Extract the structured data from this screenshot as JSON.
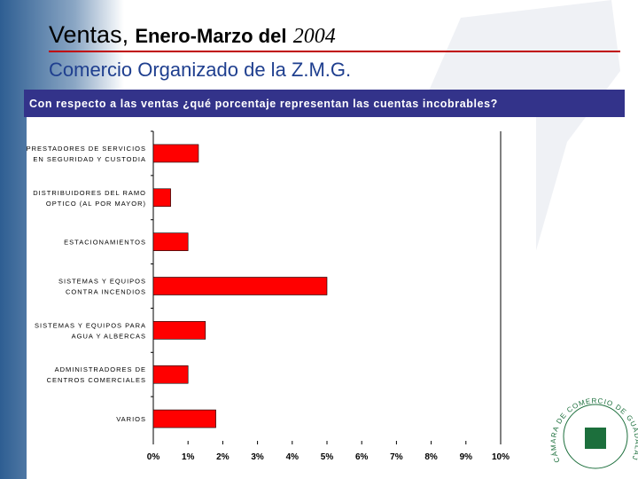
{
  "header": {
    "title": [
      "Ventas,",
      "Enero-Marzo del",
      "2004"
    ],
    "subtitle": "Comercio Organizado de la Z.M.G.",
    "question": "Con respecto a las ventas ¿qué porcentaje representan las cuentas incobrables?",
    "logo_text": "CÁMARA DE COMERCIO DE GUADALAJARA"
  },
  "chart_data": {
    "type": "hbar",
    "categories": [
      [
        "PRESTADORES DE SERVICIOS",
        "EN SEGURIDAD Y CUSTODIA"
      ],
      [
        "DISTRIBUIDORES DEL RAMO",
        "OPTICO (AL POR MAYOR)"
      ],
      [
        "ESTACIONAMIENTOS"
      ],
      [
        "SISTEMAS Y EQUIPOS",
        "CONTRA INCENDIOS"
      ],
      [
        "SISTEMAS Y EQUIPOS PARA",
        "AGUA Y ALBERCAS"
      ],
      [
        "ADMINISTRADORES DE",
        "CENTROS COMERCIALES"
      ],
      [
        "VARIOS"
      ]
    ],
    "values": [
      1.3,
      0.5,
      1.0,
      5.0,
      1.5,
      1.0,
      1.8
    ],
    "color": "#ff0000",
    "xlim": [
      0,
      10
    ],
    "xticks": [
      {
        "value": 0,
        "label": "0%"
      },
      {
        "value": 1,
        "label": "1%"
      },
      {
        "value": 2,
        "label": "2%"
      },
      {
        "value": 3,
        "label": "3%"
      },
      {
        "value": 4,
        "label": "4%"
      },
      {
        "value": 5,
        "label": "5%"
      },
      {
        "value": 6,
        "label": "6%"
      },
      {
        "value": 7,
        "label": "7%"
      },
      {
        "value": 8,
        "label": "8%"
      },
      {
        "value": 9,
        "label": "9%"
      },
      {
        "value": 10,
        "label": "10%"
      }
    ]
  }
}
